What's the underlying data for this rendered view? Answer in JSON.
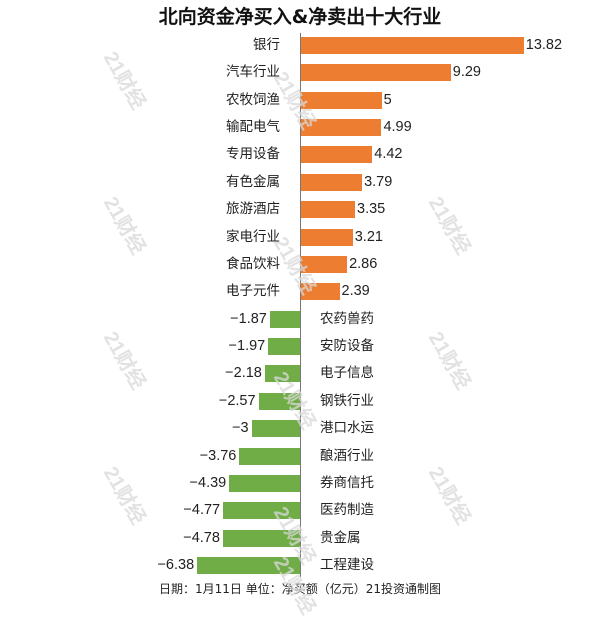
{
  "title": "北向资金净买入&净卖出十大行业",
  "footer": "日期：1月11日 单位：净买额（亿元）21投资通制图",
  "watermark": "21财经",
  "colors": {
    "positive": "#ed7d31",
    "negative": "#70ad47",
    "axis": "#777777"
  },
  "chart_data": {
    "type": "bar",
    "orientation": "horizontal",
    "title": "北向资金净买入&净卖出十大行业",
    "xlabel": "净买额（亿元）",
    "ylabel": "",
    "note": "日期：1月11日 单位：净买额（亿元）21投资通制图",
    "categories": [
      "银行",
      "汽车行业",
      "农牧饲渔",
      "输配电气",
      "专用设备",
      "有色金属",
      "旅游酒店",
      "家电行业",
      "食品饮料",
      "电子元件",
      "农药兽药",
      "安防设备",
      "电子信息",
      "钢铁行业",
      "港口水运",
      "酿酒行业",
      "券商信托",
      "医药制造",
      "贵金属",
      "工程建设"
    ],
    "values": [
      13.82,
      9.29,
      5,
      4.99,
      4.42,
      3.79,
      3.35,
      3.21,
      2.86,
      2.39,
      -1.87,
      -1.97,
      -2.18,
      -2.57,
      -3,
      -3.76,
      -4.39,
      -4.77,
      -4.78,
      -6.38
    ],
    "value_labels": [
      "13.82",
      "9.29",
      "5",
      "4.99",
      "4.42",
      "3.79",
      "3.35",
      "3.21",
      "2.86",
      "2.39",
      "−1.87",
      "−1.97",
      "−2.18",
      "−2.57",
      "−3",
      "−3.76",
      "−4.39",
      "−4.77",
      "−4.78",
      "−6.38"
    ],
    "series": [
      {
        "name": "净买入",
        "color": "#ed7d31",
        "categories": [
          "银行",
          "汽车行业",
          "农牧饲渔",
          "输配电气",
          "专用设备",
          "有色金属",
          "旅游酒店",
          "家电行业",
          "食品饮料",
          "电子元件"
        ],
        "values": [
          13.82,
          9.29,
          5,
          4.99,
          4.42,
          3.79,
          3.35,
          3.21,
          2.86,
          2.39
        ]
      },
      {
        "name": "净卖出",
        "color": "#70ad47",
        "categories": [
          "农药兽药",
          "安防设备",
          "电子信息",
          "钢铁行业",
          "港口水运",
          "酿酒行业",
          "券商信托",
          "医药制造",
          "贵金属",
          "工程建设"
        ],
        "values": [
          -1.87,
          -1.97,
          -2.18,
          -2.57,
          -3,
          -3.76,
          -4.39,
          -4.77,
          -4.78,
          -6.38
        ]
      }
    ],
    "xlim": [
      -6.38,
      13.82
    ],
    "grid": false,
    "legend": "none"
  }
}
